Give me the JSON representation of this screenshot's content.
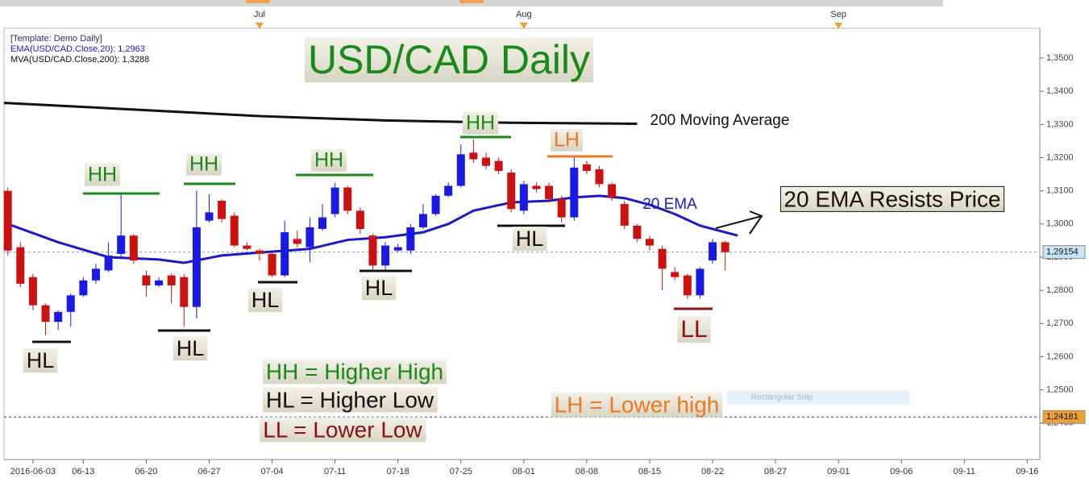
{
  "chart_data": {
    "type": "candlestick",
    "title": "USD/CAD Daily",
    "title_color": "#188a18",
    "header": [
      "[Template: Demo Daily]",
      "EMA(USD/CAD.Close,20): 1,2963",
      "MVA(USD/CAD.Close,200): 1,3288"
    ],
    "header_colors": [
      "#223366",
      "#1a1acc",
      "#111111"
    ],
    "x": [
      0,
      1,
      2,
      3,
      4,
      5,
      6,
      7,
      8,
      9,
      10,
      11,
      12,
      13,
      14,
      15,
      16,
      17,
      18,
      19,
      20,
      21,
      22,
      23,
      24,
      25,
      26,
      27,
      28,
      29,
      30,
      31,
      32,
      33,
      34,
      35,
      36,
      37,
      38,
      39,
      40,
      41,
      42,
      43,
      44,
      45,
      46,
      47,
      48,
      49,
      50,
      51,
      52,
      53,
      54,
      55,
      56,
      57
    ],
    "open": [
      1.31,
      1.293,
      1.284,
      1.2755,
      1.2705,
      1.2735,
      1.2785,
      1.283,
      1.286,
      1.291,
      1.2965,
      1.2845,
      1.2815,
      1.2845,
      1.284,
      1.275,
      1.301,
      1.307,
      1.3025,
      1.2935,
      1.292,
      1.291,
      1.2845,
      1.2955,
      1.293,
      1.2985,
      1.303,
      1.311,
      1.304,
      1.2965,
      1.2875,
      1.292,
      1.292,
      1.299,
      1.303,
      1.3085,
      1.3115,
      1.3215,
      1.32,
      1.319,
      1.3155,
      1.304,
      1.3115,
      1.3115,
      1.3075,
      1.302,
      1.318,
      1.3165,
      1.312,
      1.306,
      1.2995,
      1.2955,
      1.2925,
      1.2855,
      1.2845,
      1.2785,
      1.289,
      1.2945
    ],
    "high": [
      1.311,
      1.2945,
      1.285,
      1.276,
      1.274,
      1.279,
      1.284,
      1.288,
      1.2945,
      1.309,
      1.297,
      1.286,
      1.284,
      1.285,
      1.285,
      1.31,
      1.309,
      1.3075,
      1.3035,
      1.2945,
      1.2925,
      1.2915,
      1.301,
      1.298,
      1.302,
      1.306,
      1.3125,
      1.3115,
      1.305,
      1.297,
      1.2945,
      1.294,
      1.3,
      1.306,
      1.309,
      1.3125,
      1.324,
      1.3255,
      1.3215,
      1.32,
      1.3165,
      1.313,
      1.3125,
      1.3125,
      1.3085,
      1.32,
      1.319,
      1.3175,
      1.3125,
      1.307,
      1.3,
      1.2965,
      1.2935,
      1.287,
      1.285,
      1.287,
      1.2955,
      1.295
    ],
    "low": [
      1.2905,
      1.281,
      1.274,
      1.2665,
      1.268,
      1.269,
      1.278,
      1.282,
      1.2855,
      1.29,
      1.288,
      1.278,
      1.281,
      1.276,
      1.269,
      1.2715,
      1.3005,
      1.3005,
      1.293,
      1.292,
      1.289,
      1.284,
      1.284,
      1.293,
      1.2885,
      1.298,
      1.302,
      1.303,
      1.297,
      1.286,
      1.286,
      1.2915,
      1.291,
      1.2985,
      1.3025,
      1.308,
      1.311,
      1.3185,
      1.3165,
      1.315,
      1.3035,
      1.303,
      1.3095,
      1.3065,
      1.3005,
      1.301,
      1.315,
      1.311,
      1.307,
      1.2985,
      1.2945,
      1.292,
      1.28,
      1.283,
      1.2775,
      1.2775,
      1.288,
      1.286
    ],
    "close": [
      1.292,
      1.282,
      1.2755,
      1.2705,
      1.2735,
      1.2785,
      1.283,
      1.2865,
      1.2905,
      1.2965,
      1.289,
      1.2815,
      1.283,
      1.2815,
      1.275,
      1.299,
      1.3035,
      1.3015,
      1.2935,
      1.2925,
      1.291,
      1.2845,
      1.2975,
      1.294,
      1.299,
      1.302,
      1.311,
      1.304,
      1.2985,
      1.2875,
      1.2935,
      1.293,
      1.299,
      1.303,
      1.3085,
      1.3115,
      1.321,
      1.3195,
      1.3175,
      1.316,
      1.3045,
      1.312,
      1.3105,
      1.3075,
      1.302,
      1.317,
      1.316,
      1.312,
      1.308,
      1.2995,
      1.2955,
      1.2935,
      1.2865,
      1.284,
      1.2785,
      1.2865,
      1.2945,
      1.2915
    ],
    "up_color": "#1a1ae6",
    "down_color": "#cc1111",
    "lines": [
      {
        "color": "#1a1acc",
        "x": [
          0,
          4,
          8,
          12,
          14,
          17,
          20,
          24,
          27,
          30,
          33,
          35,
          37,
          40,
          43,
          45,
          47,
          49,
          51,
          53,
          55,
          57,
          58
        ],
        "values": [
          1.3,
          1.2945,
          1.29,
          1.2893,
          1.2883,
          1.2905,
          1.2914,
          1.2925,
          1.2952,
          1.296,
          1.2975,
          1.3,
          1.304,
          1.3065,
          1.307,
          1.308,
          1.3085,
          1.3078,
          1.3058,
          1.303,
          1.2995,
          1.2975,
          1.2965
        ]
      },
      {
        "color": "#111111",
        "x": [
          -0.3,
          10,
          20,
          30,
          40,
          50
        ],
        "values": [
          1.3365,
          1.3345,
          1.3325,
          1.3312,
          1.3305,
          1.3302
        ]
      }
    ],
    "price_lines": [
      {
        "value": 1.29154,
        "label": "1,29154",
        "color": "#6aaad8",
        "box": "#c8e4f8"
      },
      {
        "value": 1.24181,
        "label": "1,24181",
        "color": "#1a3a8a",
        "box": "#f0a030"
      }
    ],
    "xlim": [
      -0.3,
      82
    ],
    "ylim": [
      1.229,
      1.359
    ],
    "yticks": [
      {
        "value": 1.24,
        "label": "1,2400"
      },
      {
        "value": 1.25,
        "label": "1,2500"
      },
      {
        "value": 1.26,
        "label": "1,2600"
      },
      {
        "value": 1.27,
        "label": "1,2700"
      },
      {
        "value": 1.28,
        "label": "1,2800"
      },
      {
        "value": 1.29,
        "label": "1,2900"
      },
      {
        "value": 1.3,
        "label": "1,3000"
      },
      {
        "value": 1.31,
        "label": "1,3100"
      },
      {
        "value": 1.32,
        "label": "1,3200"
      },
      {
        "value": 1.33,
        "label": "1,3300"
      },
      {
        "value": 1.34,
        "label": "1,3400"
      },
      {
        "value": 1.35,
        "label": "1,3500"
      }
    ],
    "xticks": [
      {
        "value": 2,
        "label": "2016-06-03"
      },
      {
        "value": 6,
        "label": "06-13"
      },
      {
        "value": 11,
        "label": "06-20"
      },
      {
        "value": 16,
        "label": "06-27"
      },
      {
        "value": 21,
        "label": "07-04"
      },
      {
        "value": 26,
        "label": "07-11"
      },
      {
        "value": 31,
        "label": "07-18"
      },
      {
        "value": 36,
        "label": "07-25"
      },
      {
        "value": 41,
        "label": "08-01"
      },
      {
        "value": 46,
        "label": "08-08"
      },
      {
        "value": 51,
        "label": "08-15"
      },
      {
        "value": 56,
        "label": "08-22"
      },
      {
        "value": 61,
        "label": "08-27"
      },
      {
        "value": 66,
        "label": "09-01"
      },
      {
        "value": 71,
        "label": "09-06"
      },
      {
        "value": 76,
        "label": "09-11"
      },
      {
        "value": 81,
        "label": "09-16"
      }
    ],
    "x2ticks": [
      {
        "value": 20,
        "label": "Jul"
      },
      {
        "value": 41,
        "label": "Aug"
      },
      {
        "value": 66,
        "label": "Sep"
      }
    ],
    "annotations": [
      {
        "text": "HH",
        "color": "#188a18"
      },
      {
        "text": "HH",
        "color": "#188a18"
      },
      {
        "text": "HH",
        "color": "#188a18"
      },
      {
        "text": "HH",
        "color": "#188a18"
      },
      {
        "text": "LH",
        "color": "#f07820"
      },
      {
        "text": "HL",
        "color": "#111111"
      },
      {
        "text": "HL",
        "color": "#111111"
      },
      {
        "text": "HL",
        "color": "#111111"
      },
      {
        "text": "HL",
        "color": "#111111"
      },
      {
        "text": "HL",
        "color": "#111111"
      },
      {
        "text": "LL",
        "color": "#8b1010"
      },
      {
        "text": "200 Moving Average",
        "color": "#111111"
      },
      {
        "text": "20 EMA",
        "color": "#1a1acc"
      },
      {
        "text": "20 EMA Resists Price",
        "color": "#111111"
      },
      {
        "text": "HH = Higher High",
        "color": "#188a18"
      },
      {
        "text": "HL = Higher Low",
        "color": "#111111"
      },
      {
        "text": "LL = Lower Low",
        "color": "#8b1010"
      },
      {
        "text": "LH = Lower high",
        "color": "#f07820"
      },
      {
        "text": "Rectangular Snip",
        "color": "#aab4c0"
      }
    ]
  }
}
